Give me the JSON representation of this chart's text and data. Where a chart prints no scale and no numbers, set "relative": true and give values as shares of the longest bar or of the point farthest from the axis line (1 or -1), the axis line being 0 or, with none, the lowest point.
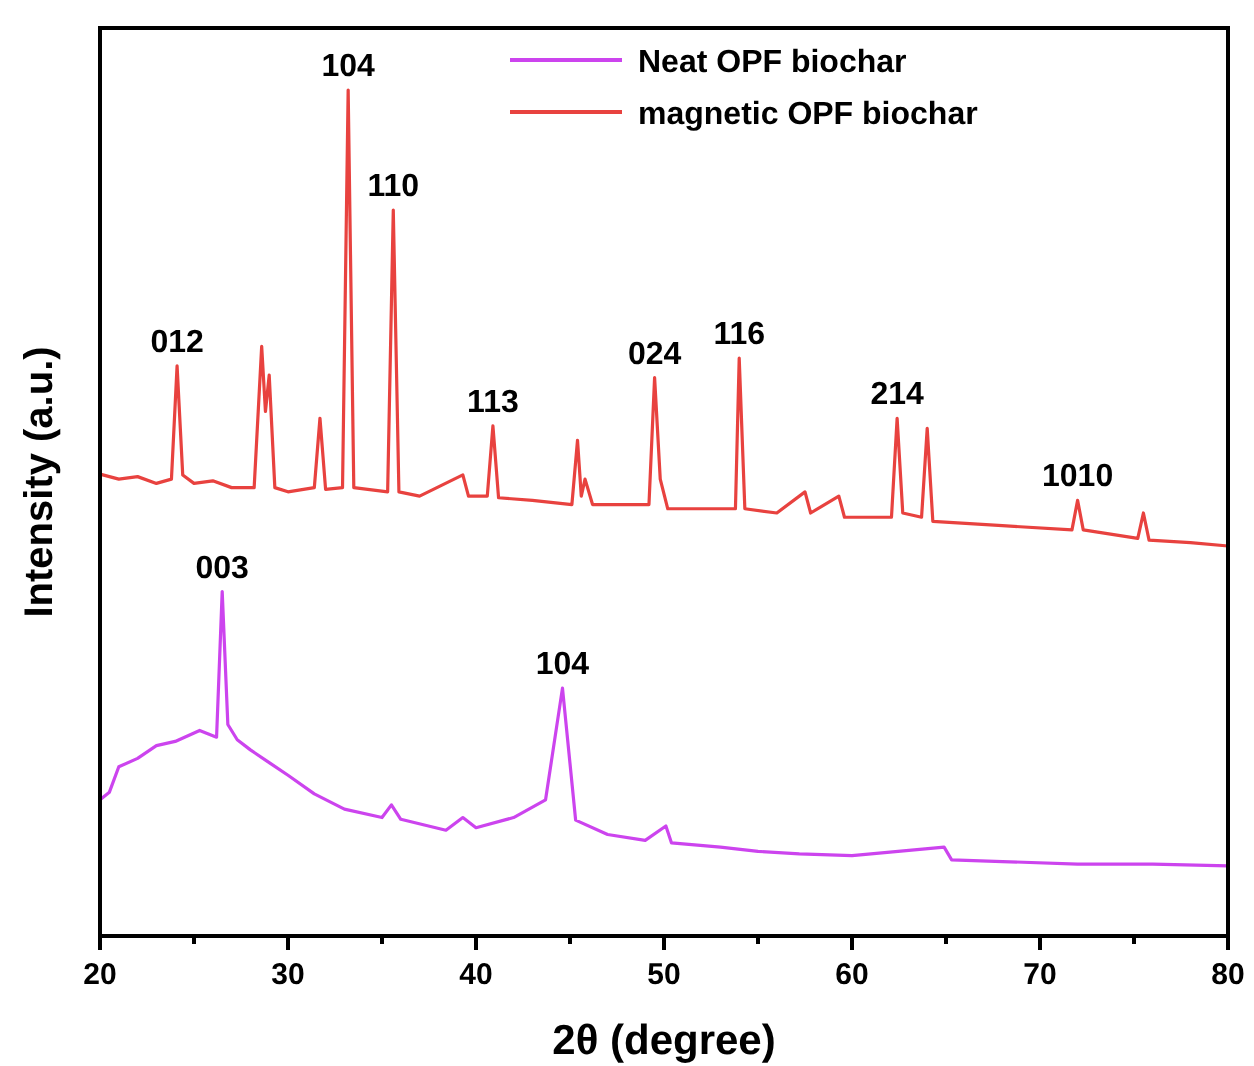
{
  "chart_data": {
    "type": "line",
    "xlabel": "2θ (degree)",
    "ylabel": "Intensity (a.u.)",
    "relative": true,
    "xlim": [
      20,
      80
    ],
    "xticks": [
      20,
      {
        "value": 25,
        "label": null
      },
      30,
      {
        "value": 35,
        "label": null
      },
      40,
      {
        "value": 45,
        "label": null
      },
      50,
      {
        "value": 55,
        "label": null
      },
      60,
      {
        "value": 65,
        "label": null
      },
      70,
      {
        "value": 75,
        "label": null
      },
      80
    ],
    "legend": "top right",
    "grid": false,
    "line_style": "solid",
    "series": [
      {
        "name": "Neat OPF biochar",
        "color": "#cc44ee",
        "x": [
          20,
          20.5,
          21,
          22,
          23,
          24,
          25.3,
          26.2,
          26.5,
          26.8,
          27.3,
          28,
          29,
          30,
          31.4,
          33,
          35,
          35.5,
          36,
          38.4,
          39.3,
          40,
          42,
          43.7,
          44.6,
          45.3,
          47,
          49,
          50.1,
          50.4,
          53,
          55,
          57.2,
          60,
          64.9,
          65.3,
          68,
          72,
          76,
          80
        ],
        "values": [
          0.161,
          0.17,
          0.2,
          0.21,
          0.225,
          0.23,
          0.243,
          0.235,
          0.407,
          0.25,
          0.232,
          0.22,
          0.205,
          0.19,
          0.168,
          0.15,
          0.14,
          0.155,
          0.138,
          0.125,
          0.14,
          0.128,
          0.14,
          0.161,
          0.293,
          0.137,
          0.12,
          0.113,
          0.13,
          0.11,
          0.105,
          0.1,
          0.097,
          0.095,
          0.105,
          0.09,
          0.088,
          0.085,
          0.085,
          0.083
        ]
      },
      {
        "name": "magnetic OPF biochar",
        "color": "#e8423f",
        "x": [
          20,
          21,
          22,
          23,
          23.8,
          24.1,
          24.4,
          25,
          26,
          27,
          28.2,
          28.6,
          28.8,
          29.0,
          29.3,
          30,
          31.4,
          31.7,
          32.0,
          32.9,
          33.2,
          33.5,
          35.3,
          35.6,
          35.9,
          37,
          39.3,
          39.6,
          40.6,
          40.9,
          41.2,
          43,
          45.1,
          45.4,
          45.6,
          45.8,
          46.2,
          48,
          49.2,
          49.5,
          49.8,
          50.2,
          52,
          53.8,
          54.0,
          54.3,
          56,
          57.5,
          57.8,
          59.3,
          59.6,
          62.1,
          62.4,
          62.7,
          63.7,
          64.0,
          64.3,
          68,
          71.7,
          72.0,
          72.3,
          75.2,
          75.5,
          75.8,
          78,
          80
        ],
        "values": [
          0.546,
          0.54,
          0.543,
          0.535,
          0.54,
          0.674,
          0.545,
          0.535,
          0.538,
          0.53,
          0.53,
          0.697,
          0.62,
          0.663,
          0.53,
          0.525,
          0.53,
          0.612,
          0.528,
          0.53,
          1,
          0.53,
          0.525,
          0.858,
          0.525,
          0.52,
          0.545,
          0.52,
          0.52,
          0.603,
          0.518,
          0.515,
          0.51,
          0.586,
          0.52,
          0.54,
          0.51,
          0.51,
          0.51,
          0.66,
          0.54,
          0.505,
          0.505,
          0.505,
          0.683,
          0.505,
          0.5,
          0.525,
          0.5,
          0.52,
          0.495,
          0.495,
          0.612,
          0.5,
          0.495,
          0.6,
          0.49,
          0.485,
          0.48,
          0.515,
          0.48,
          0.47,
          0.5,
          0.468,
          0.465,
          0.461
        ]
      }
    ],
    "annotations": [
      {
        "text": "012",
        "x": 24.1,
        "y": 0.674
      },
      {
        "text": "104",
        "x": 33.2,
        "y": 1
      },
      {
        "text": "110",
        "x": 35.6,
        "y": 0.858
      },
      {
        "text": "113",
        "x": 40.9,
        "y": 0.603
      },
      {
        "text": "024",
        "x": 49.5,
        "y": 0.66
      },
      {
        "text": "116",
        "x": 54.0,
        "y": 0.683
      },
      {
        "text": "214",
        "x": 62.4,
        "y": 0.612
      },
      {
        "text": "1010",
        "x": 72.0,
        "y": 0.515
      },
      {
        "text": "003",
        "x": 26.5,
        "y": 0.407
      },
      {
        "text": "104",
        "x": 44.6,
        "y": 0.293
      }
    ]
  }
}
